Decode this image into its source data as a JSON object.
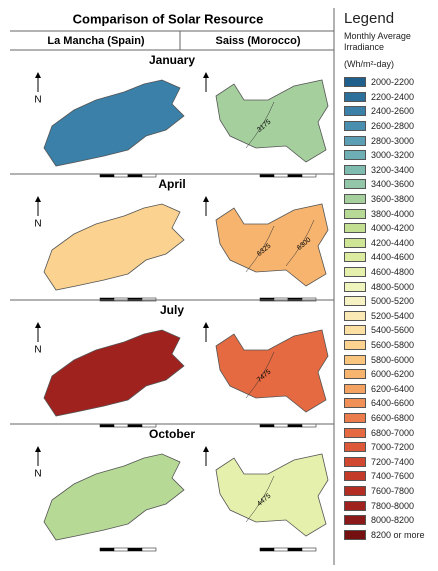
{
  "title": "Comparison of Solar Resource",
  "columns": [
    "La Mancha (Spain)",
    "Saiss (Morocco)"
  ],
  "north": "N",
  "months": [
    {
      "name": "January",
      "maps": [
        {
          "fill": "#3a80a8",
          "labels": []
        },
        {
          "fill": "#a5d09e",
          "labels": [
            "3175"
          ]
        }
      ]
    },
    {
      "name": "April",
      "maps": [
        {
          "fill": "#fbd28f",
          "labels": []
        },
        {
          "fill": "#f7b46e",
          "labels": [
            "6325",
            "6300"
          ]
        }
      ]
    },
    {
      "name": "July",
      "maps": [
        {
          "fill": "#a0221e",
          "labels": []
        },
        {
          "fill": "#e56a41",
          "labels": [
            "7475"
          ]
        }
      ]
    },
    {
      "name": "October",
      "maps": [
        {
          "fill": "#b6d996",
          "labels": []
        },
        {
          "fill": "#e6f0ad",
          "labels": [
            "4475"
          ]
        }
      ]
    }
  ],
  "legend": {
    "title": "Legend",
    "subtitle": "Monthly Average Irradiance",
    "unit": "(Wh/m²-day)",
    "items": [
      {
        "label": "2000-2200",
        "color": "#1f5f8b"
      },
      {
        "label": "2200-2400",
        "color": "#2b6f9a"
      },
      {
        "label": "2400-2600",
        "color": "#3a80a8"
      },
      {
        "label": "2600-2800",
        "color": "#4a8fb0"
      },
      {
        "label": "2800-3000",
        "color": "#5c9fb5"
      },
      {
        "label": "3000-3200",
        "color": "#6eaeb5"
      },
      {
        "label": "3200-3400",
        "color": "#80bbb0"
      },
      {
        "label": "3400-3600",
        "color": "#93c6a8"
      },
      {
        "label": "3600-3800",
        "color": "#a5d09e"
      },
      {
        "label": "3800-4000",
        "color": "#b6d996"
      },
      {
        "label": "4000-4200",
        "color": "#c3df92"
      },
      {
        "label": "4200-4400",
        "color": "#cfe596"
      },
      {
        "label": "4400-4600",
        "color": "#dbeba0"
      },
      {
        "label": "4600-4800",
        "color": "#e6f0ad"
      },
      {
        "label": "4800-5000",
        "color": "#eff4bc"
      },
      {
        "label": "5000-5200",
        "color": "#f7f2c3"
      },
      {
        "label": "5200-5400",
        "color": "#fbe9b5"
      },
      {
        "label": "5400-5600",
        "color": "#fcdfa2"
      },
      {
        "label": "5600-5800",
        "color": "#fbd28f"
      },
      {
        "label": "5800-6000",
        "color": "#f9c47e"
      },
      {
        "label": "6000-6200",
        "color": "#f7b46e"
      },
      {
        "label": "6200-6400",
        "color": "#f4a262"
      },
      {
        "label": "6400-6600",
        "color": "#f08f56"
      },
      {
        "label": "6600-6800",
        "color": "#eb7c4b"
      },
      {
        "label": "6800-7000",
        "color": "#e56a41"
      },
      {
        "label": "7000-7200",
        "color": "#dc5838"
      },
      {
        "label": "7200-7400",
        "color": "#d14830"
      },
      {
        "label": "7400-7600",
        "color": "#c33a29"
      },
      {
        "label": "7600-7800",
        "color": "#b32d23"
      },
      {
        "label": "7800-8000",
        "color": "#a0221e"
      },
      {
        "label": "8000-8200",
        "color": "#8c1919"
      },
      {
        "label": "8200 or more",
        "color": "#741010"
      }
    ]
  }
}
